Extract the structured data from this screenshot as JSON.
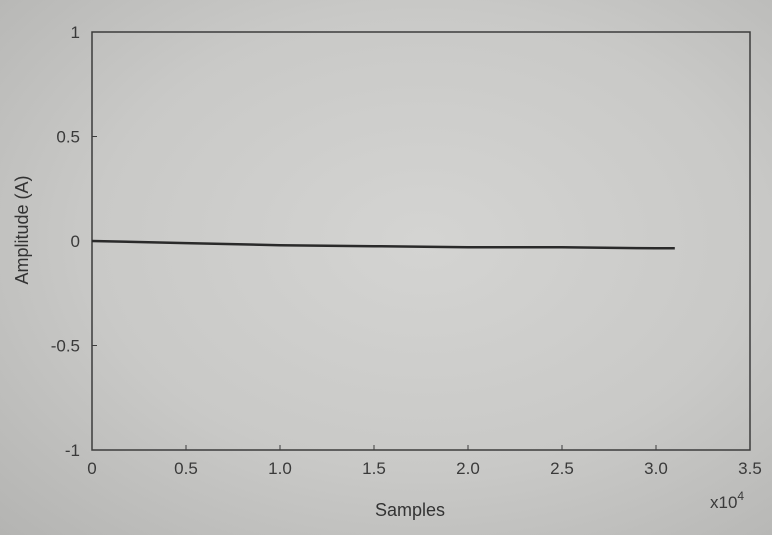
{
  "chart_data": {
    "type": "line",
    "title": "",
    "xlabel": "Samples",
    "ylabel": "Amplitude (A)",
    "x_multiplier_label": "x10",
    "x_multiplier_exponent": "4",
    "xlim": [
      0,
      3.5
    ],
    "ylim": [
      -1,
      1
    ],
    "x_ticks": [
      "0",
      "0.5",
      "1.0",
      "1.5",
      "2.0",
      "2.5",
      "3.0",
      "3.5"
    ],
    "y_ticks": [
      "1",
      "0.5",
      "0",
      "-0.5",
      "-1"
    ],
    "grid": false,
    "series": [
      {
        "x": [
          0,
          0.5,
          1.0,
          1.5,
          2.0,
          2.5,
          3.0,
          3.1
        ],
        "y": [
          0,
          -0.01,
          -0.02,
          -0.025,
          -0.03,
          -0.03,
          -0.035,
          -0.035
        ]
      }
    ],
    "line_color": "#2a2a2a",
    "axis_color": "#3c3c3c"
  }
}
